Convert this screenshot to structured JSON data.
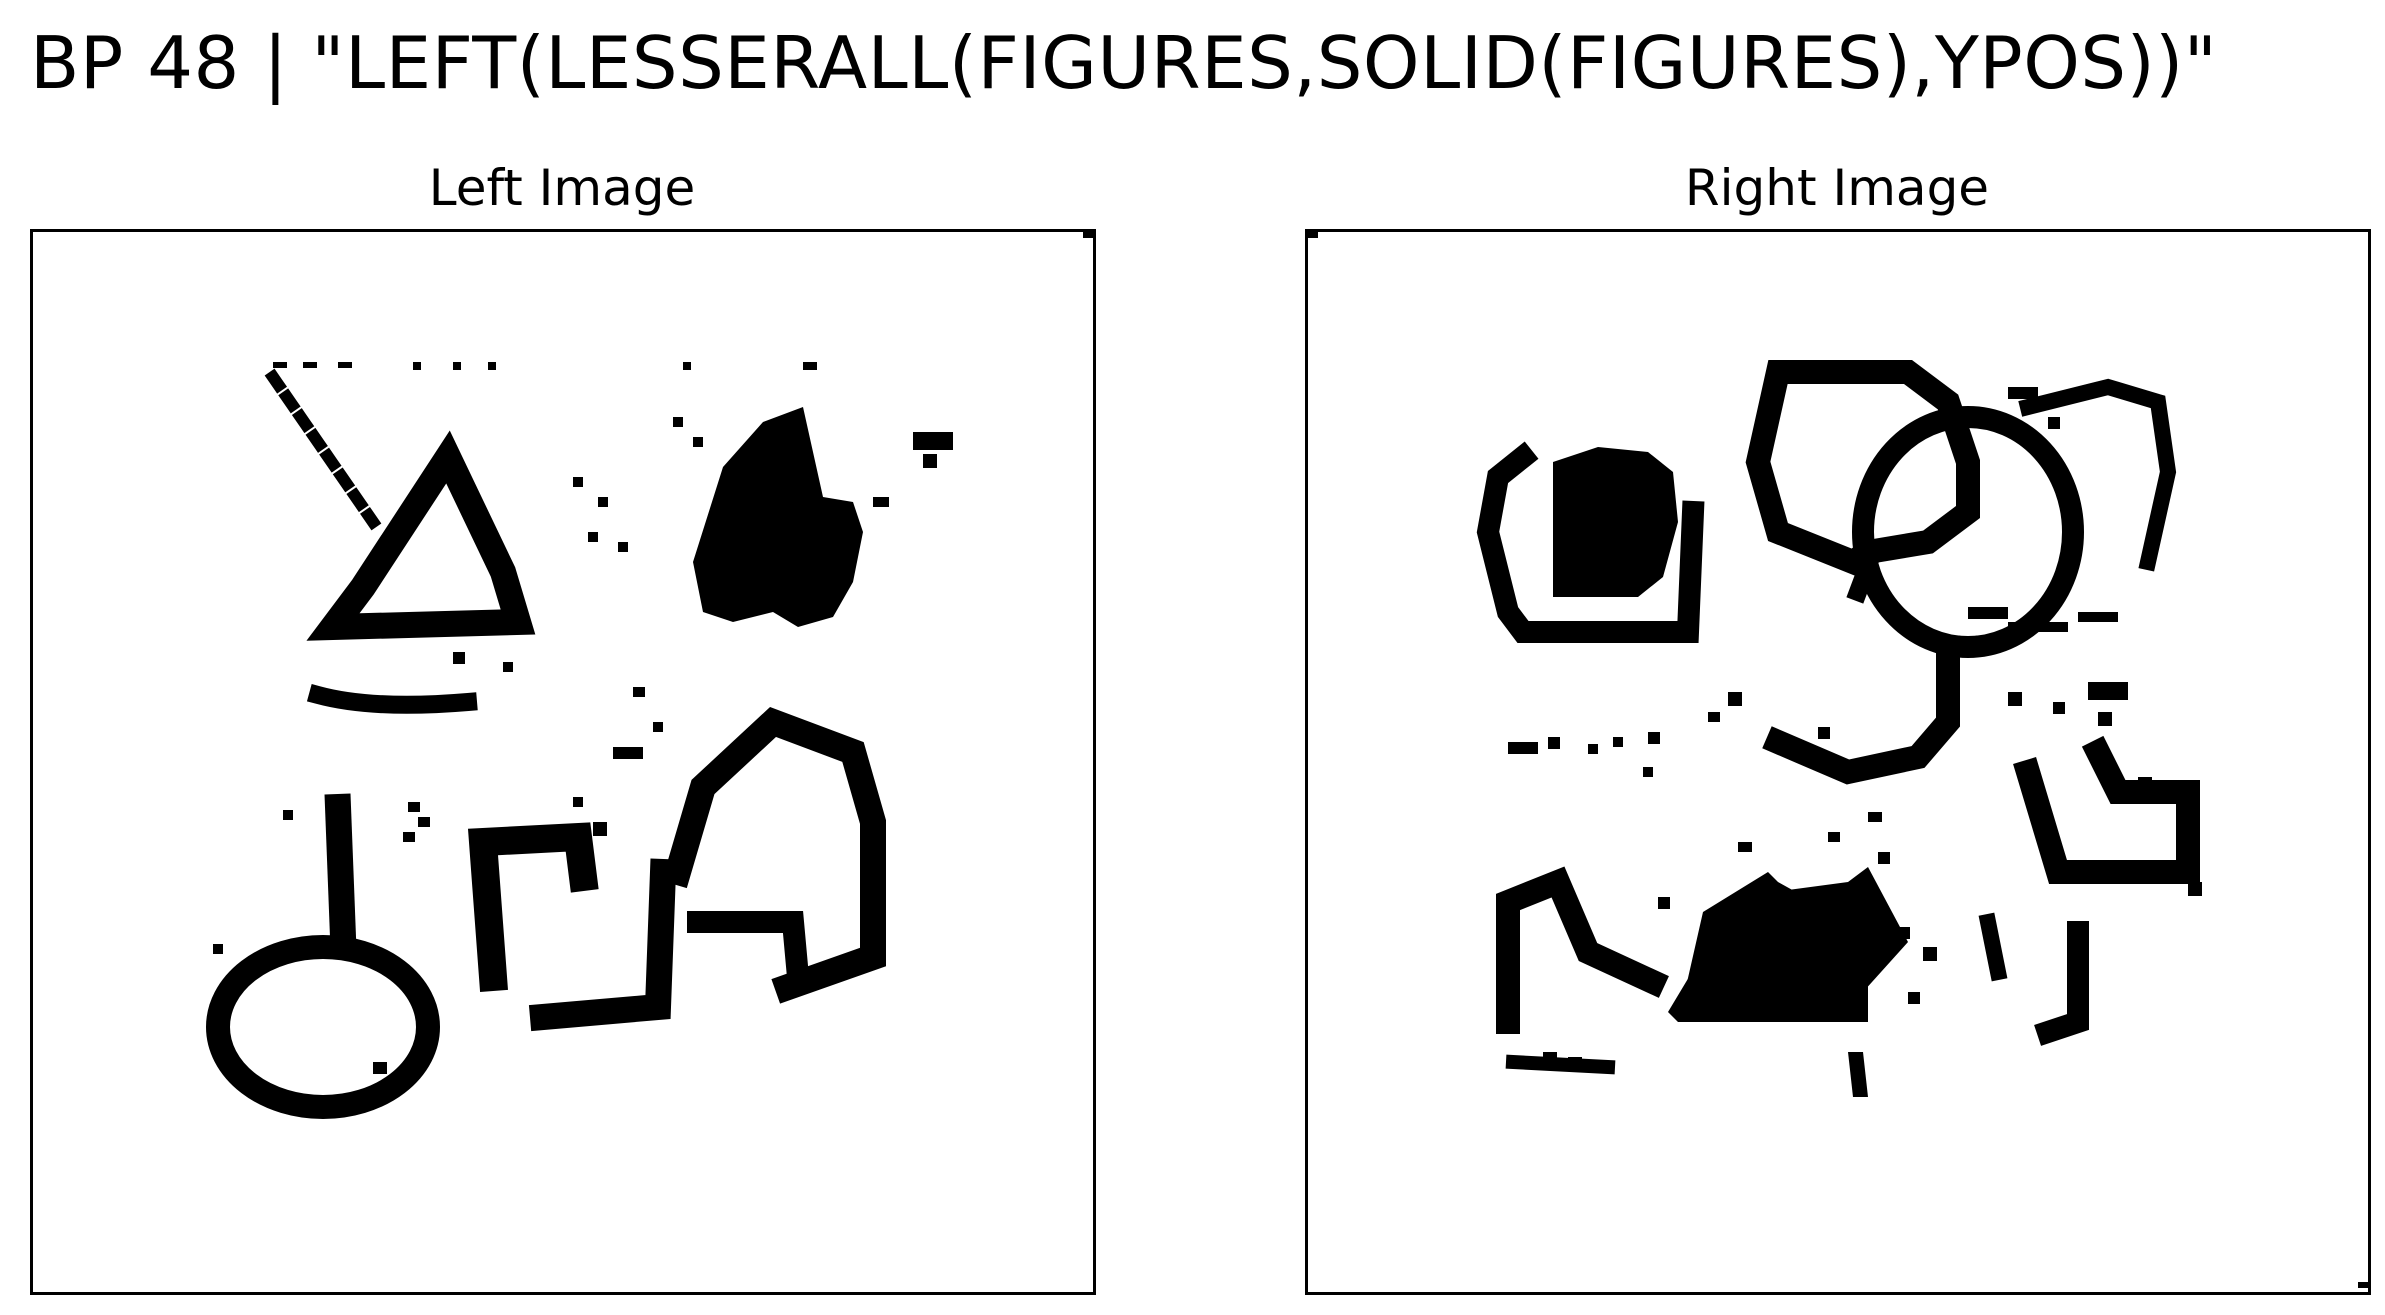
{
  "title": "BP 48 | \"LEFT(LESSERALL(FIGURES,SOLID(FIGURES),YPOS))\"",
  "panels": [
    {
      "title": "Left Image"
    },
    {
      "title": "Right Image"
    }
  ],
  "colors": {
    "ink": "#000000",
    "background": "#ffffff"
  }
}
